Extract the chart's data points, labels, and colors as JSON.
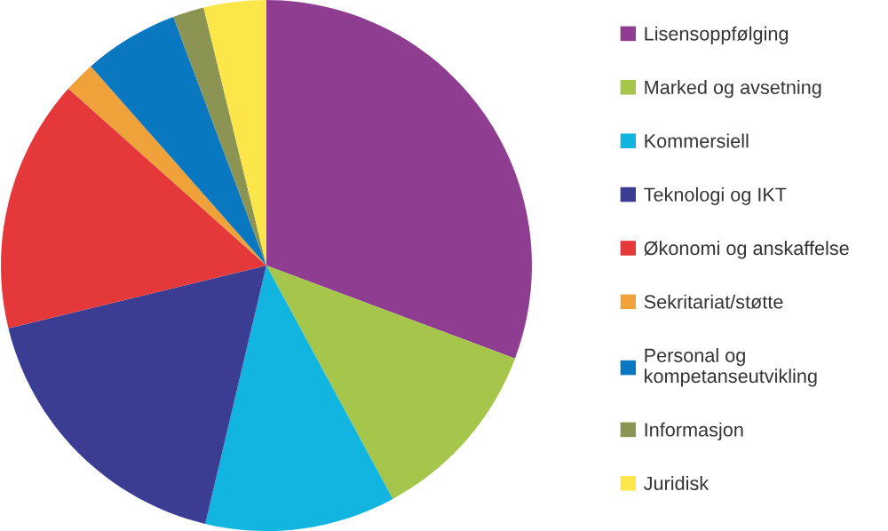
{
  "chart_data": {
    "type": "pie",
    "categories": [
      "Lisensoppfølging",
      "Marked og avsetning",
      "Kommersiell",
      "Teknologi og IKT",
      "Økonomi og anskaffelse",
      "Sekritariat/støtte",
      "Personal og\nkompetanseutvikling",
      "Informasjon",
      "Juridisk"
    ],
    "values": [
      30.7,
      11.4,
      11.6,
      17.5,
      15.4,
      1.9,
      5.8,
      1.9,
      3.8
    ],
    "colors": [
      "#8e3d91",
      "#a5c64a",
      "#12b5df",
      "#3b3d92",
      "#e5383b",
      "#f0a23a",
      "#0a78c0",
      "#8b9452",
      "#fde64a"
    ],
    "legend": "right"
  }
}
